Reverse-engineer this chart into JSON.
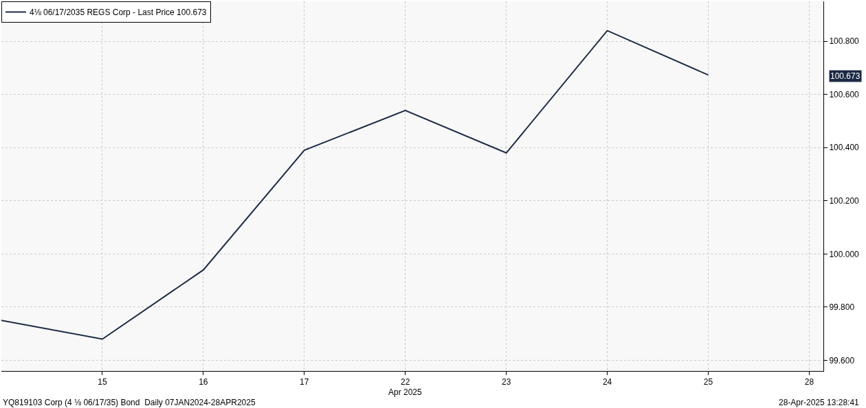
{
  "chart_data": {
    "type": "line",
    "categories": [
      null,
      "15",
      "16",
      "17",
      "22",
      "23",
      "24",
      "25",
      "28"
    ],
    "series": [
      {
        "name": "4⅛ 06/17/2035 REGS Corp - Last Price 100.673",
        "color": "#1b2a44",
        "values": [
          99.75,
          99.68,
          99.94,
          100.39,
          100.54,
          100.38,
          100.84,
          100.673,
          null
        ]
      }
    ],
    "ylim": [
      99.56,
      100.95
    ],
    "yticks": [
      {
        "value": 99.6,
        "label": "99.600"
      },
      {
        "value": 99.8,
        "label": "99.800"
      },
      {
        "value": 100.0,
        "label": "100.000"
      },
      {
        "value": 100.2,
        "label": "100.200"
      },
      {
        "value": 100.4,
        "label": "100.400"
      },
      {
        "value": 100.6,
        "label": "100.600"
      },
      {
        "value": 100.8,
        "label": "100.800"
      }
    ],
    "annotations": [
      "Apr 2025",
      "YQ819103 Corp (4 ⅛ 06/17/35) Bond  Daily 07JAN2024-28APR2025",
      "28-Apr-2025 13:28:41",
      "100.673"
    ],
    "grid": true,
    "legend": "top left",
    "marker": "none",
    "line_style": "solid"
  }
}
